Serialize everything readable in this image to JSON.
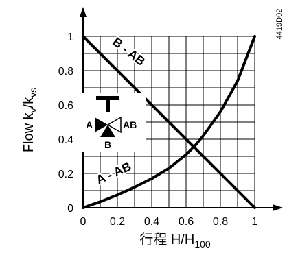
{
  "chart_data": {
    "type": "line",
    "xlabel_main": "行程 H/H",
    "xlabel_sub": "100",
    "ylabel_main": "Flow k",
    "ylabel_sub1": "v",
    "ylabel_mid": "/k",
    "ylabel_sub2": "vs",
    "code": "4419D02",
    "xlim": [
      0,
      1
    ],
    "ylim": [
      0,
      1
    ],
    "grid": true,
    "x_ticks": [
      "0",
      "0.2",
      "0.4",
      "0.6",
      "0.8",
      "1"
    ],
    "y_ticks": [
      "0",
      "0.2",
      "0.4",
      "0.6",
      "0.8",
      "1"
    ],
    "series": [
      {
        "name": "B - AB",
        "x": [
          0,
          1
        ],
        "y": [
          1,
          0
        ]
      },
      {
        "name": "A - AB",
        "x": [
          0,
          0.1,
          0.2,
          0.3,
          0.4,
          0.5,
          0.6,
          0.65,
          0.7,
          0.8,
          0.9,
          1.0
        ],
        "y": [
          0,
          0.035,
          0.075,
          0.12,
          0.17,
          0.23,
          0.31,
          0.36,
          0.42,
          0.56,
          0.74,
          1.0
        ]
      }
    ],
    "valve_symbol": {
      "port_a": "A",
      "port_ab": "AB",
      "port_b": "B"
    }
  }
}
